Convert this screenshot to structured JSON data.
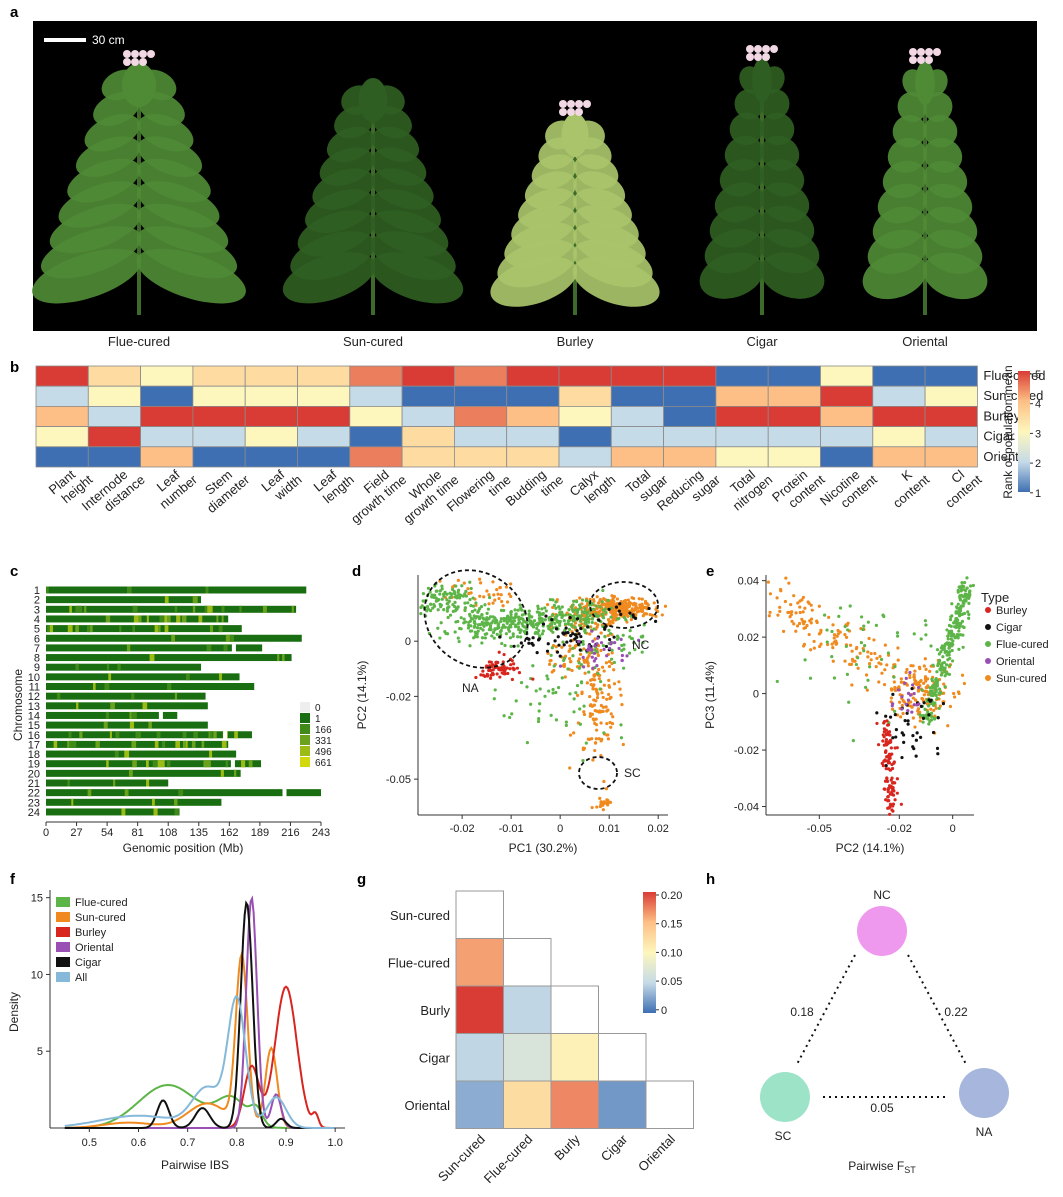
{
  "panel_labels": [
    "a",
    "b",
    "c",
    "d",
    "e",
    "f",
    "g",
    "h"
  ],
  "panel_a": {
    "scale_bar": "30 cm",
    "plants": [
      "Flue-cured",
      "Sun-cured",
      "Burley",
      "Cigar",
      "Oriental"
    ],
    "colors": {
      "background": "#000000",
      "leaf_dark": "#2f5e22",
      "leaf_mid": "#4f8a35",
      "leaf_light": "#8fb96a",
      "burley": "#a9c46a",
      "flower": "#f2d7e4"
    }
  },
  "chart_data": [
    {
      "type": "heatmap",
      "id": "b",
      "rows": [
        "Flue-cured",
        "Sun-cured",
        "Burley",
        "Cigar",
        "Oriental"
      ],
      "columns": [
        [
          "Plant",
          "height"
        ],
        [
          "Internode",
          "distance"
        ],
        [
          "Leaf",
          "number"
        ],
        [
          "Stem",
          "diameter"
        ],
        [
          "Leaf",
          "width"
        ],
        [
          "Leaf",
          "length"
        ],
        [
          "Field",
          "growth time"
        ],
        [
          "Whole",
          "growth time"
        ],
        [
          "Flowering",
          "time"
        ],
        [
          "Budding",
          "time"
        ],
        [
          "Calyx",
          "length"
        ],
        [
          "Total",
          "sugar"
        ],
        [
          "Reducing",
          "sugar"
        ],
        [
          "Total",
          "nitrogen"
        ],
        [
          "Protein",
          "content"
        ],
        [
          "Nicotine",
          "content"
        ],
        [
          "K",
          "content"
        ],
        [
          "Cl",
          "content"
        ]
      ],
      "values": [
        [
          5,
          3.5,
          3,
          3.5,
          3.5,
          3.5,
          4.5,
          5,
          4.5,
          5,
          5,
          5,
          5,
          1,
          1,
          3,
          1,
          1
        ],
        [
          2,
          3,
          1,
          3,
          3,
          3,
          2,
          1,
          1,
          1,
          3.5,
          1,
          1,
          4,
          4,
          5,
          2,
          3
        ],
        [
          4,
          2,
          5,
          5,
          5,
          5,
          3,
          2,
          4.5,
          4,
          3,
          2,
          1,
          5,
          5,
          4,
          5,
          5
        ],
        [
          3,
          5,
          2,
          2,
          3,
          2,
          1,
          3.5,
          2,
          2,
          1,
          2,
          2,
          2,
          2,
          2,
          3,
          2
        ],
        [
          1,
          1,
          4,
          1,
          1,
          1,
          4.5,
          3.5,
          3.5,
          3.5,
          2,
          4,
          4,
          3,
          3,
          1,
          4,
          4
        ]
      ],
      "colorbar": {
        "label": "Rank of population mean",
        "ticks": [
          "5",
          "4",
          "3",
          "2",
          "1"
        ],
        "range": [
          1,
          5
        ]
      },
      "palette": [
        "#3f6fb3",
        "#c6dbe8",
        "#fdf6bd",
        "#fdbf85",
        "#d93c35"
      ]
    },
    {
      "type": "bar",
      "id": "c",
      "ylabel": "Chromosome",
      "xlabel": "Genomic position (Mb)",
      "categories": [
        "1",
        "2",
        "3",
        "4",
        "5",
        "6",
        "7",
        "8",
        "9",
        "10",
        "11",
        "12",
        "13",
        "14",
        "15",
        "16",
        "17",
        "18",
        "19",
        "20",
        "21",
        "22",
        "23",
        "24"
      ],
      "values": [
        230,
        137,
        221,
        161,
        173,
        226,
        191,
        217,
        137,
        171,
        184,
        141,
        143,
        116,
        143,
        182,
        161,
        168,
        190,
        172,
        108,
        243,
        155,
        118
      ],
      "xticks": [
        "0",
        "27",
        "54",
        "81",
        "108",
        "135",
        "162",
        "189",
        "216",
        "243"
      ],
      "xlim": [
        0,
        243
      ],
      "legend": [
        "0",
        "1",
        "166",
        "331",
        "496",
        "661"
      ],
      "legend_colors": [
        "#eeeeee",
        "#1a6e12",
        "#3f8a19",
        "#6aa21d",
        "#9cbb14",
        "#d1d90d"
      ]
    },
    {
      "type": "scatter",
      "id": "d",
      "xlabel": "PC1 (30.2%)",
      "ylabel": "PC2 (14.1%)",
      "xticks": [
        "-0.02",
        "-0.01",
        "0",
        "0.01",
        "0.02"
      ],
      "yticks": [
        "0",
        "-0.02",
        "-0.05"
      ],
      "xlim": [
        -0.029,
        0.022
      ],
      "ylim": [
        -0.063,
        0.024
      ],
      "annotations": [
        "NA",
        "NC",
        "SC"
      ],
      "series": [
        {
          "name": "Flue-cured",
          "color": "#5db548",
          "cluster_centers": [
            [
              -0.018,
              0.008
            ],
            [
              -0.005,
              0.005
            ],
            [
              0.007,
              -0.02
            ]
          ]
        },
        {
          "name": "Sun-cured",
          "color": "#f08a1e",
          "cluster_centers": [
            [
              0.012,
              0.012
            ],
            [
              0.008,
              -0.025
            ],
            [
              0.009,
              -0.058
            ]
          ]
        },
        {
          "name": "Burley",
          "color": "#d8261f",
          "cluster_centers": [
            [
              -0.012,
              -0.012
            ]
          ]
        },
        {
          "name": "Cigar",
          "color": "#111111",
          "cluster_centers": [
            [
              0.0,
              0.001
            ]
          ]
        },
        {
          "name": "Oriental",
          "color": "#9a4fb5",
          "cluster_centers": [
            [
              0.008,
              -0.005
            ]
          ]
        }
      ]
    },
    {
      "type": "scatter",
      "id": "e",
      "xlabel": "PC2 (14.1%)",
      "ylabel": "PC3 (11.4%)",
      "xticks": [
        "-0.05",
        "-0.02",
        "0"
      ],
      "yticks": [
        "0.04",
        "0.02",
        "0",
        "-0.02",
        "-0.04"
      ],
      "xlim": [
        -0.07,
        0.008
      ],
      "ylim": [
        -0.043,
        0.042
      ],
      "legend_title": "Type",
      "legend": [
        "Burley",
        "Cigar",
        "Flue-cured",
        "Oriental",
        "Sun-cured"
      ],
      "legend_colors": [
        "#d8261f",
        "#111111",
        "#5db548",
        "#9a4fb5",
        "#f08a1e"
      ]
    },
    {
      "type": "line",
      "id": "f",
      "xlabel": "Pairwise IBS",
      "ylabel": "Density",
      "xticks": [
        "0.5",
        "0.6",
        "0.7",
        "0.8",
        "0.9",
        "1.0"
      ],
      "yticks": [
        "5",
        "10",
        "15"
      ],
      "xlim": [
        0.42,
        1.02
      ],
      "ylim": [
        0,
        15.5
      ],
      "series": [
        {
          "name": "Flue-cured",
          "color": "#5db548",
          "peak_x": 0.81,
          "peak_y": 3.3
        },
        {
          "name": "Sun-cured",
          "color": "#f08a1e",
          "peak_x": 0.81,
          "peak_y": 11.7
        },
        {
          "name": "Burley",
          "color": "#d8261f",
          "peak_x": 0.9,
          "peak_y": 9.3
        },
        {
          "name": "Oriental",
          "color": "#9a4fb5",
          "peak_x": 0.83,
          "peak_y": 15.2
        },
        {
          "name": "Cigar",
          "color": "#111111",
          "peak_x": 0.82,
          "peak_y": 14.9
        },
        {
          "name": "All",
          "color": "#86b9d9",
          "peak_x": 0.8,
          "peak_y": 8.3
        }
      ]
    },
    {
      "type": "heatmap",
      "id": "g",
      "rows": [
        "Sun-cured",
        "Flue-cured",
        "Burly",
        "Cigar",
        "Oriental"
      ],
      "columns": [
        "Sun-cured",
        "Flue-cured",
        "Burly",
        "Cigar",
        "Oriental"
      ],
      "values": [
        [
          null,
          null,
          null,
          null,
          null
        ],
        [
          0.17,
          null,
          null,
          null,
          null
        ],
        [
          0.21,
          0.05,
          null,
          null,
          null
        ],
        [
          0.05,
          0.07,
          0.11,
          null,
          null
        ],
        [
          0.03,
          0.13,
          0.18,
          0.02,
          null
        ]
      ],
      "colorbar": {
        "ticks": [
          "0.20",
          "0.15",
          "0.10",
          "0.05",
          "0"
        ],
        "range": [
          0,
          0.21
        ]
      }
    }
  ],
  "panel_h": {
    "nodes": [
      "NC",
      "SC",
      "NA"
    ],
    "node_colors": [
      "#ee98ee",
      "#9de3c7",
      "#a6b6dc"
    ],
    "edges": [
      {
        "from": "NC",
        "to": "SC",
        "label": "0.18"
      },
      {
        "from": "NC",
        "to": "NA",
        "label": "0.22"
      },
      {
        "from": "SC",
        "to": "NA",
        "label": "0.05"
      }
    ],
    "caption_main": "Pairwise F",
    "caption_sub": "ST"
  }
}
